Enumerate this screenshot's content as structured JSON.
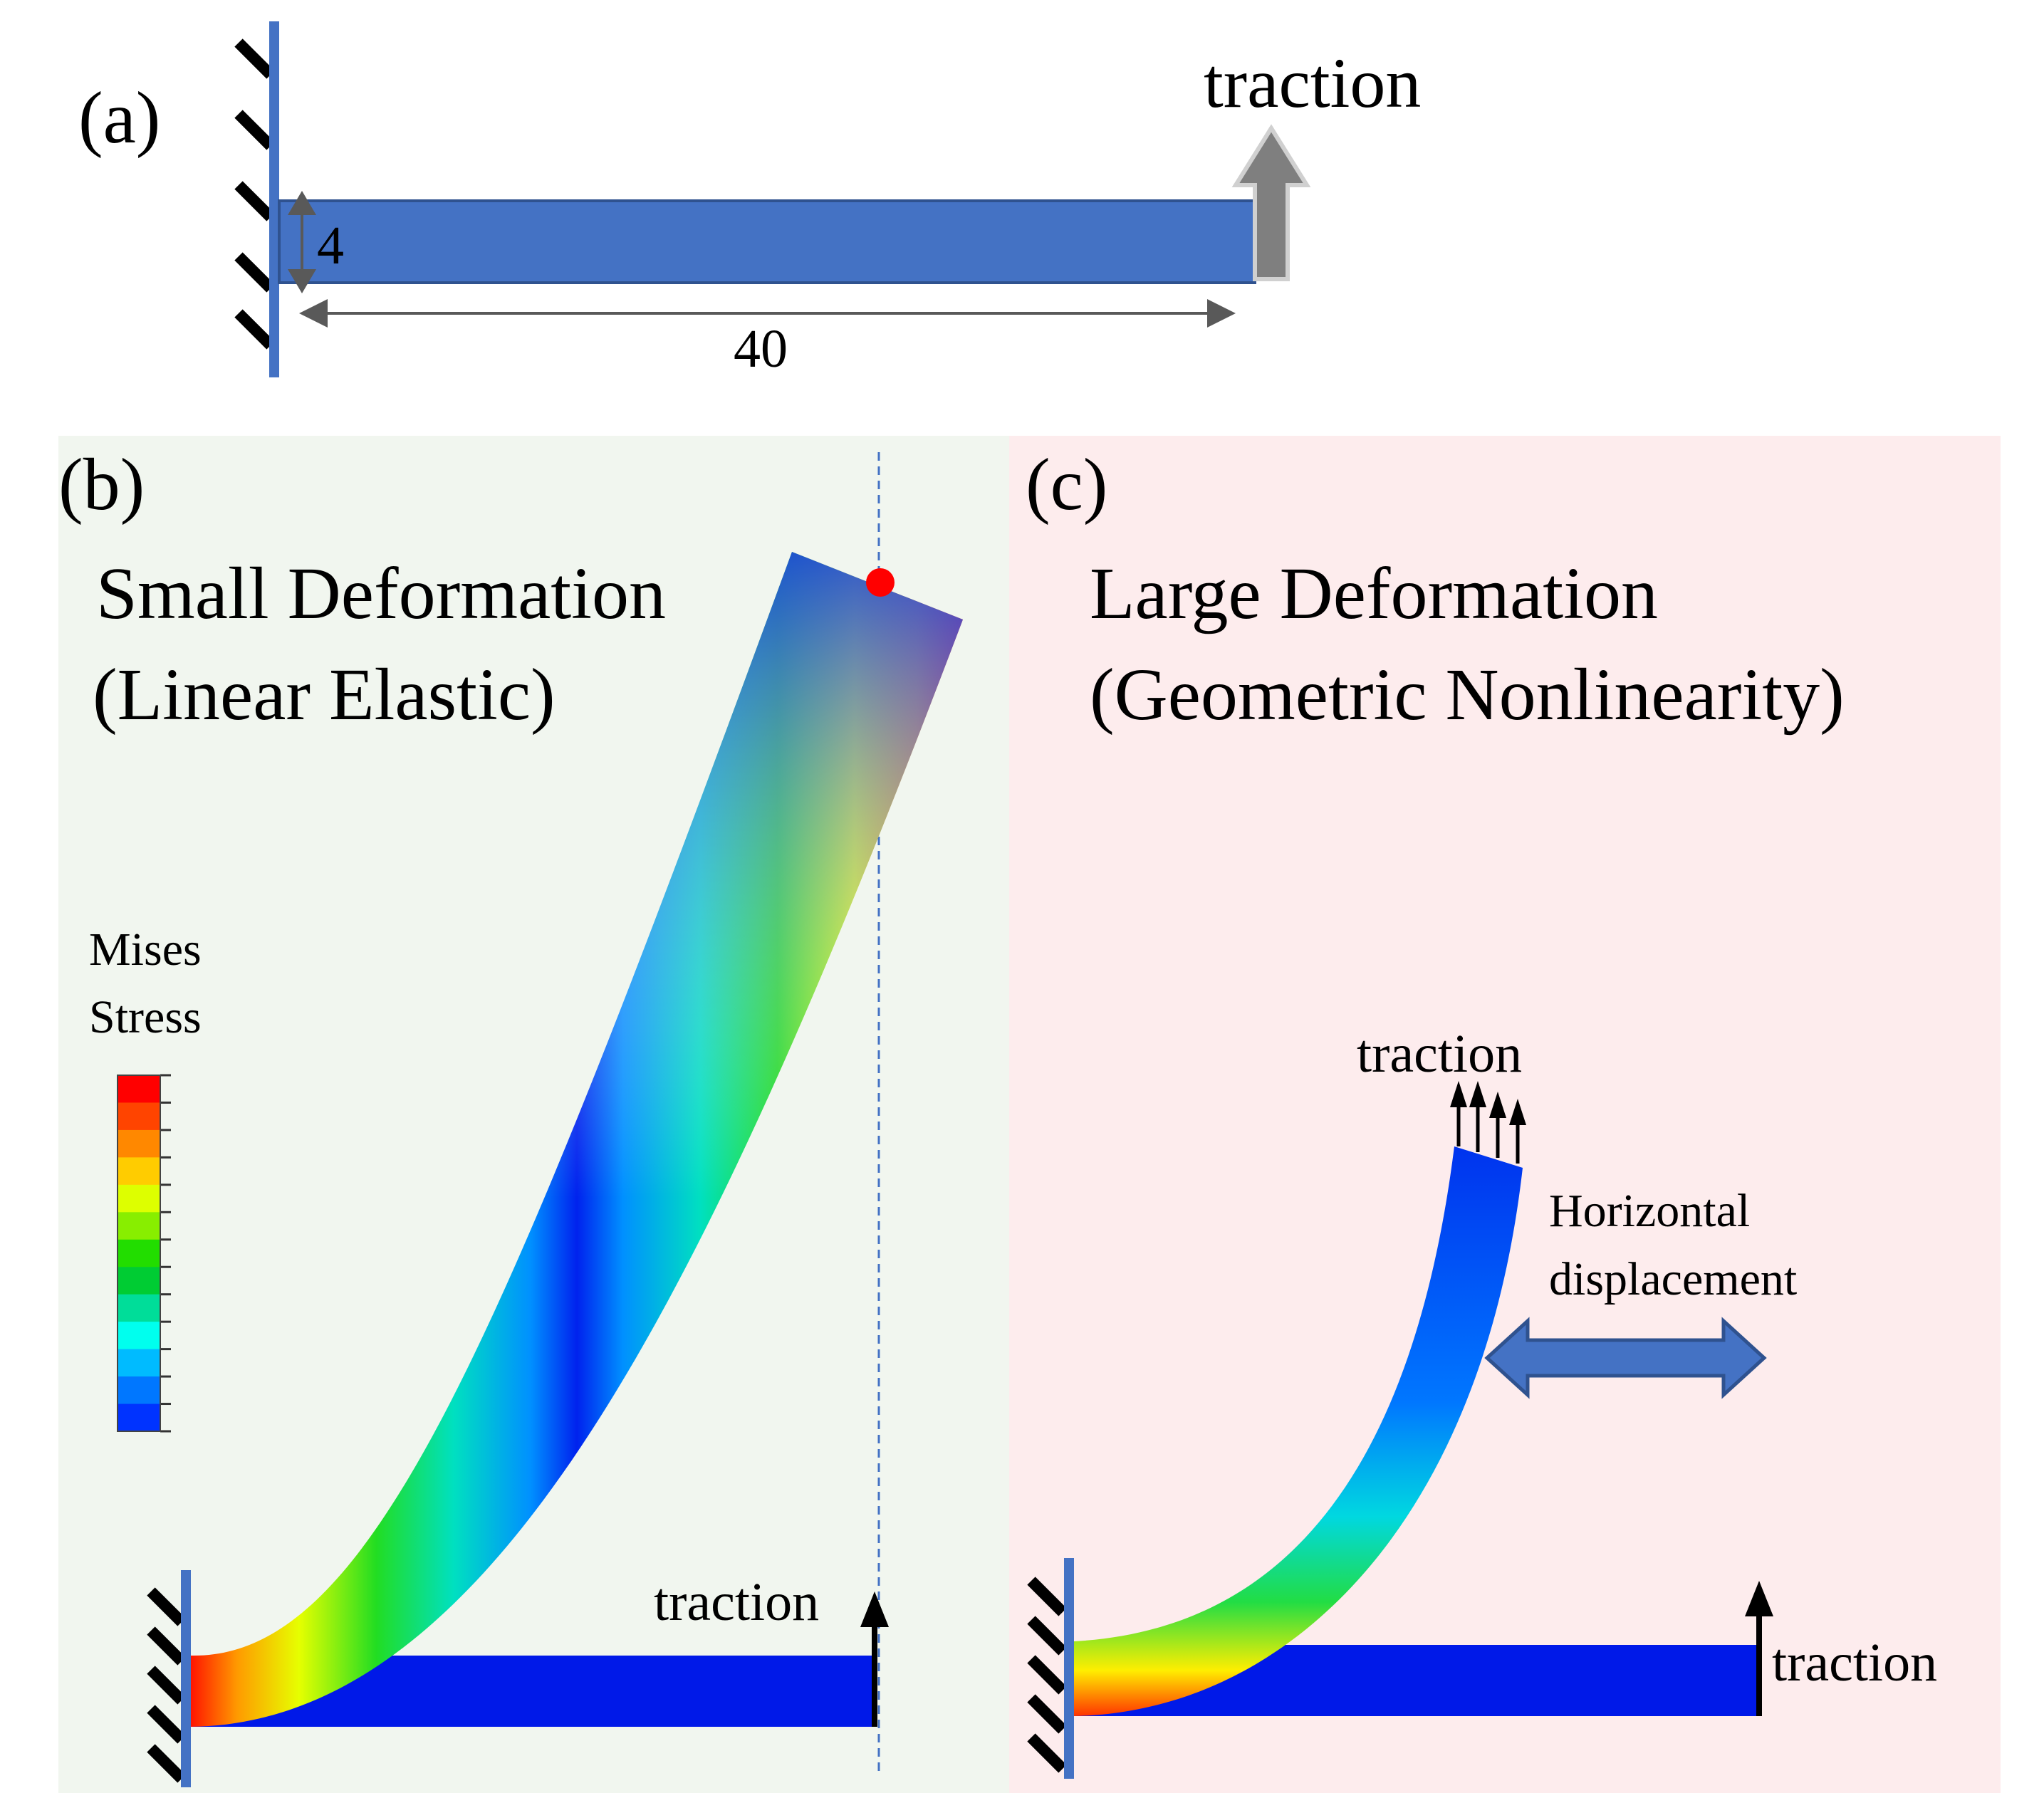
{
  "panel_a": {
    "label": "(a)",
    "traction_label": "traction",
    "height_dim": "4",
    "length_dim": "40"
  },
  "panel_b": {
    "label": "(b)",
    "title_line1": "Small Deformation",
    "title_line2": "(Linear Elastic)",
    "legend_line1": "Mises",
    "legend_line2": "Stress",
    "traction_label": "traction",
    "legend_colors": [
      "#ff0000",
      "#ff4400",
      "#ff8800",
      "#ffcc00",
      "#ddff00",
      "#88ee00",
      "#22dd00",
      "#00cc33",
      "#00dd99",
      "#00ffee",
      "#00bbff",
      "#0077ff",
      "#0033ff"
    ]
  },
  "panel_c": {
    "label": "(c)",
    "title_line1": "Large Deformation",
    "title_line2": "(Geometric Nonlinearity)",
    "traction_top_label": "traction",
    "traction_right_label": "traction",
    "displacement_line1": "Horizontal",
    "displacement_line2": "displacement"
  },
  "colors": {
    "beam_blue": "#4472c4",
    "panel_b_bg": "#f1f6ef",
    "panel_c_bg": "#fdeced",
    "stress_low": "#0019e8",
    "marker_red": "#ff0000"
  }
}
